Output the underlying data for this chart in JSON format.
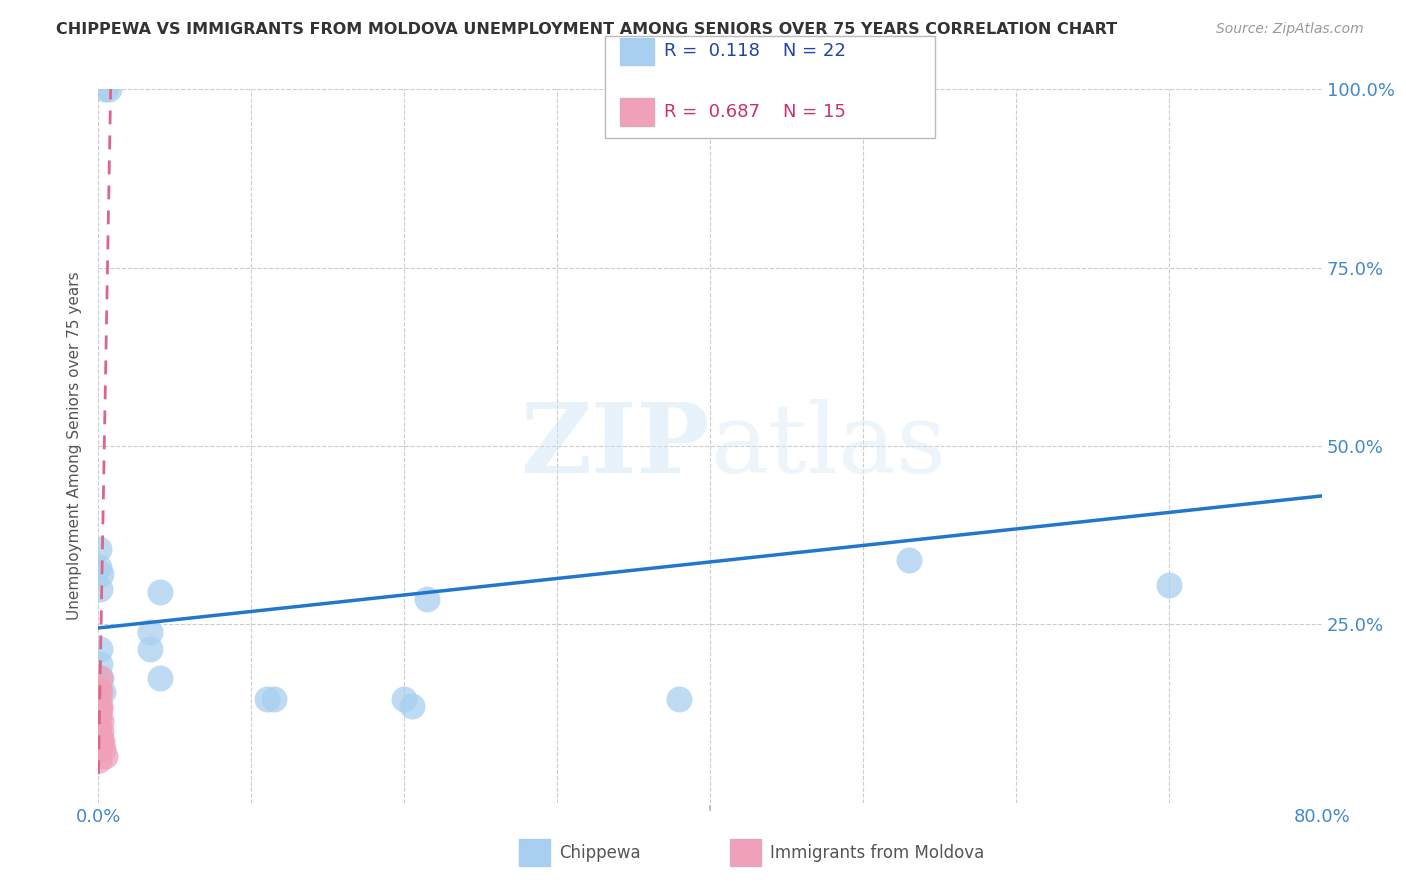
{
  "title": "CHIPPEWA VS IMMIGRANTS FROM MOLDOVA UNEMPLOYMENT AMONG SENIORS OVER 75 YEARS CORRELATION CHART",
  "source": "Source: ZipAtlas.com",
  "ylabel": "Unemployment Among Seniors over 75 years",
  "xlim": [
    0.0,
    0.8
  ],
  "ylim": [
    0.0,
    1.0
  ],
  "xticks": [
    0.0,
    0.1,
    0.2,
    0.3,
    0.4,
    0.5,
    0.6,
    0.7,
    0.8
  ],
  "yticks": [
    0.0,
    0.25,
    0.5,
    0.75,
    1.0
  ],
  "chippewa_color": "#a8cff0",
  "moldova_color": "#f0a0b8",
  "chippewa_line_color": "#2277cc",
  "moldova_line_color": "#dd6688",
  "watermark_zip": "ZIP",
  "watermark_atlas": "atlas",
  "legend_R_chippewa": "0.118",
  "legend_N_chippewa": "22",
  "legend_R_moldova": "0.687",
  "legend_N_moldova": "15",
  "chippewa_x": [
    0.004,
    0.007,
    0.001,
    0.002,
    0.0005,
    0.0005,
    0.001,
    0.001,
    0.002,
    0.003,
    0.04,
    0.04,
    0.11,
    0.115,
    0.2,
    0.205,
    0.215,
    0.38,
    0.53,
    0.7,
    0.034,
    0.034
  ],
  "chippewa_y": [
    1.0,
    1.0,
    0.3,
    0.32,
    0.33,
    0.355,
    0.215,
    0.195,
    0.175,
    0.155,
    0.295,
    0.175,
    0.145,
    0.145,
    0.145,
    0.135,
    0.285,
    0.145,
    0.34,
    0.305,
    0.24,
    0.215
  ],
  "moldova_x": [
    0.0003,
    0.0003,
    0.0004,
    0.0005,
    0.0007,
    0.0008,
    0.001,
    0.0012,
    0.0013,
    0.0015,
    0.0018,
    0.002,
    0.0025,
    0.003,
    0.004
  ],
  "moldova_y": [
    0.06,
    0.1,
    0.12,
    0.14,
    0.16,
    0.13,
    0.175,
    0.155,
    0.135,
    0.115,
    0.1,
    0.09,
    0.085,
    0.075,
    0.065
  ],
  "chippewa_trend_x": [
    0.0,
    0.8
  ],
  "chippewa_trend_y": [
    0.245,
    0.43
  ],
  "moldova_trend_x_start": 0.0,
  "moldova_trend_y_start": 0.04,
  "moldova_trend_slope": 120.0
}
